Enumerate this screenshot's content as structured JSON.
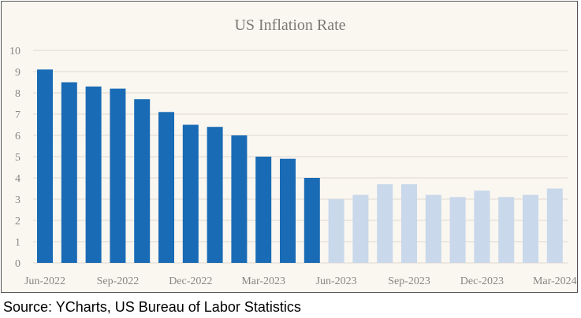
{
  "chart_data": {
    "type": "bar",
    "title": "US Inflation Rate",
    "xlabel": "",
    "ylabel": "",
    "ylim": [
      0,
      10
    ],
    "yticks": [
      0,
      1,
      2,
      3,
      4,
      5,
      6,
      7,
      8,
      9,
      10
    ],
    "grid": true,
    "categories": [
      "Jun-2022",
      "Jul-2022",
      "Aug-2022",
      "Sep-2022",
      "Oct-2022",
      "Nov-2022",
      "Dec-2022",
      "Jan-2023",
      "Feb-2023",
      "Mar-2023",
      "Apr-2023",
      "May-2023",
      "Jun-2023",
      "Jul-2023",
      "Aug-2023",
      "Sep-2023",
      "Oct-2023",
      "Nov-2023",
      "Dec-2023",
      "Jan-2024",
      "Feb-2024",
      "Mar-2024"
    ],
    "xtick_labels": [
      "Jun-2022",
      "Sep-2022",
      "Dec-2022",
      "Mar-2023",
      "Jun-2023",
      "Sep-2023",
      "Dec-2023",
      "Mar-2024"
    ],
    "values": [
      9.1,
      8.5,
      8.3,
      8.2,
      7.7,
      7.1,
      6.5,
      6.4,
      6.0,
      5.0,
      4.9,
      4.0,
      3.0,
      3.2,
      3.7,
      3.7,
      3.2,
      3.1,
      3.4,
      3.1,
      3.2,
      3.5
    ],
    "colors": {
      "highlight": "#1a6bb5",
      "muted": "#c9d8ea",
      "grid": "#e3ded5",
      "text": "#8a8580"
    },
    "highlight_count": 12
  },
  "source": "Source: YCharts, US Bureau of Labor Statistics"
}
